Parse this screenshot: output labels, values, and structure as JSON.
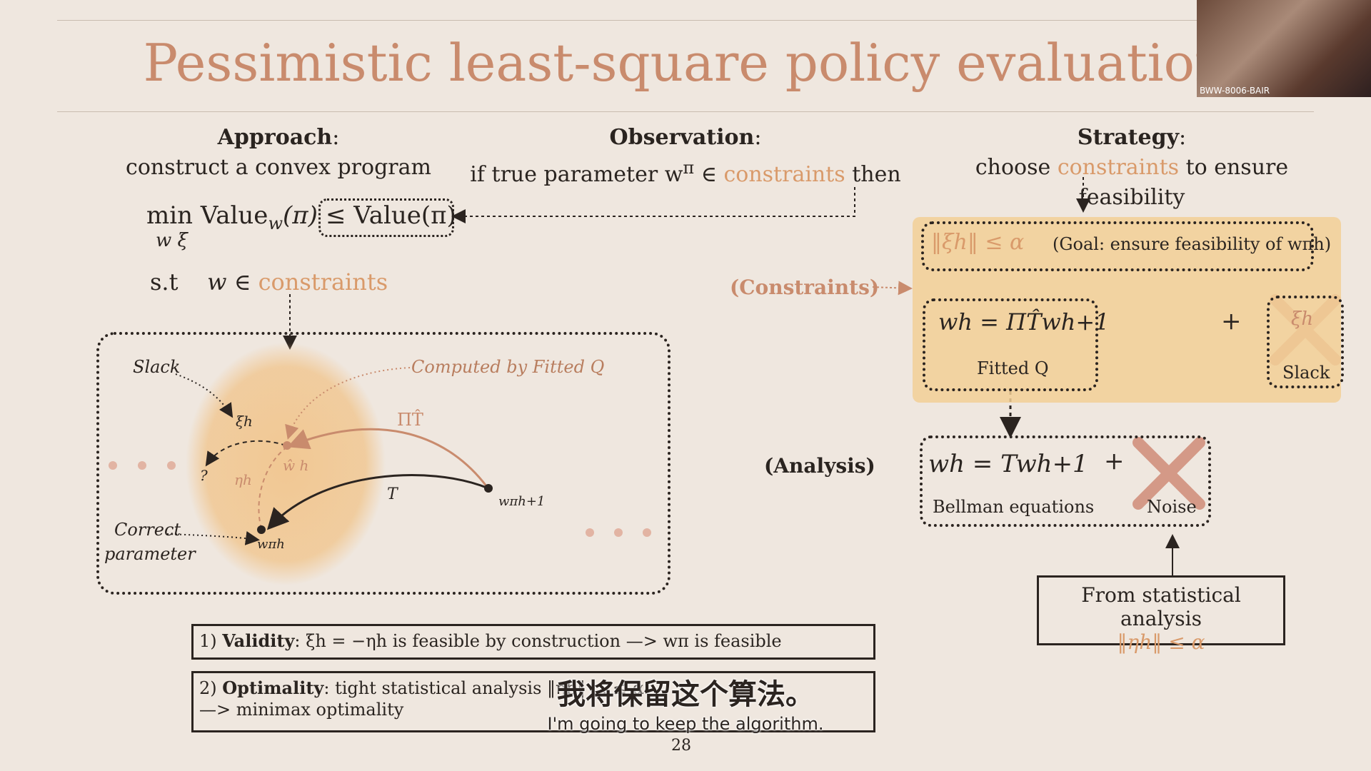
{
  "slide": {
    "title": "Pessimistic least-square policy evaluation",
    "page_number": "28",
    "approach": {
      "head": "Approach",
      "text": "construct a convex program"
    },
    "observation": {
      "head": "Observation",
      "text_pre": "if true parameter w",
      "text_sup": "π",
      "text_mid": " ∈ ",
      "text_accent": "constraints",
      "text_post": " then"
    },
    "strategy": {
      "head": "Strategy",
      "text_pre": "choose ",
      "text_accent": "constraints",
      "text_post": " to ensure feasibility"
    },
    "program": {
      "min": "min",
      "value_w": "Value",
      "value_w_sub": "w",
      "pi": "(π)",
      "under": "w  ξ",
      "bound": "≤ Value(π)",
      "st": "s.t",
      "w_in": "w ∈ ",
      "constraints": "constraints"
    },
    "diagram": {
      "slack": "Slack",
      "computed": "Computed by Fitted Q",
      "pi_t_hat": "ΠT̂",
      "t": "T",
      "xi_h": "ξh",
      "eta_h": "ηh",
      "w_hat_h": "ŵ h",
      "q": "?",
      "correct": "Correct",
      "parameter": "parameter",
      "w_pi_h": "wπh",
      "w_pi_h1": "wπh+1"
    },
    "right": {
      "constraints_label": "(Constraints)",
      "goal_math": "‖ξh‖ ≤ α",
      "goal_text": "(Goal: ensure feasibility of wπh)",
      "fitted_eq": "wh = ΠT̂wh+1",
      "fitted_label": "Fitted Q",
      "plus": "+",
      "slack_math": "ξh",
      "slack_label": "Slack",
      "analysis_label": "(Analysis)",
      "bellman_eq": "wh = Twh+1",
      "bellman_label": "Bellman equations",
      "noise_label": "Noise",
      "stat_line1": "From statistical analysis",
      "stat_line2": "‖ηh‖ ≤ α"
    },
    "validity": {
      "num": "1) ",
      "head": "Validity",
      "text": ": ξh = −ηh is feasible by construction —> wπ is feasible"
    },
    "optimality": {
      "num": "2) ",
      "head": "Optimality",
      "text1": ": tight statistical analysis ‖ηh‖ ... ≤ α",
      "text2": "—> minimax optimality"
    }
  },
  "subtitles": {
    "chinese": "我将保留这个算法。",
    "english": "I'm going to keep the algorithm."
  },
  "webcam": {
    "label": "BWW-8006-BAIR"
  },
  "colors": {
    "accent": "#d99a6a",
    "title": "#c98b6d",
    "panel": "#f2cf96",
    "cross": "#d08c78"
  }
}
